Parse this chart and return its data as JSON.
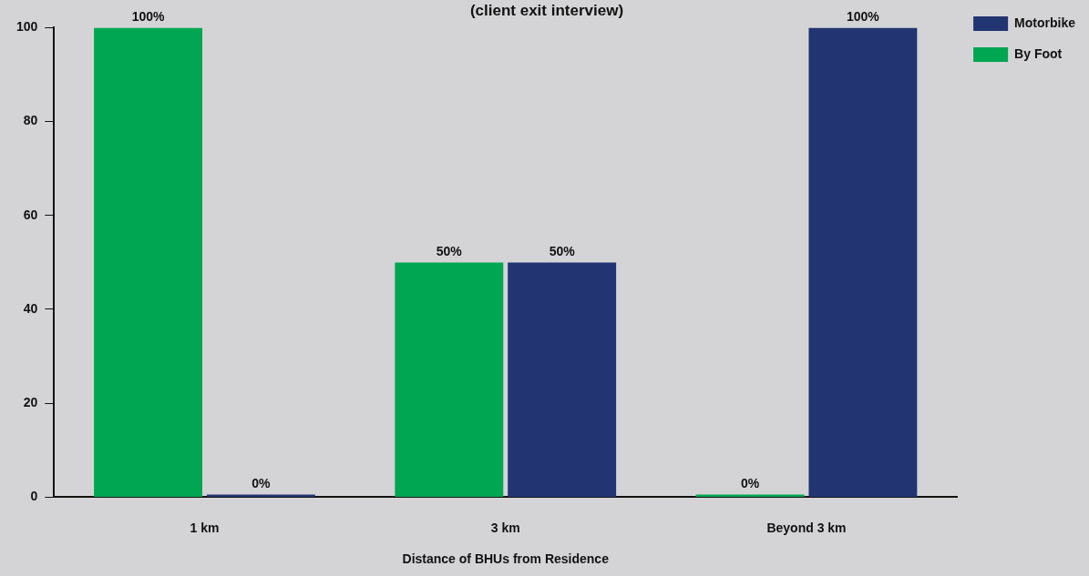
{
  "chart_data": {
    "type": "bar",
    "title": "(client exit interview)",
    "xlabel": "Distance of BHUs from Residence",
    "categories": [
      "1 km",
      "3 km",
      "Beyond 3 km"
    ],
    "series": [
      {
        "name": "By Foot",
        "color": "#00a651",
        "values": [
          100,
          50,
          0
        ],
        "value_labels": [
          "100%",
          "50%",
          "0%"
        ]
      },
      {
        "name": "Motorbike",
        "color": "#223572",
        "values": [
          0,
          50,
          100
        ],
        "value_labels": [
          "0%",
          "50%",
          "100%"
        ]
      }
    ],
    "ylim": [
      0,
      100
    ],
    "yticks": [
      0,
      20,
      40,
      60,
      80,
      100
    ],
    "grid": false,
    "legend": "top right"
  }
}
